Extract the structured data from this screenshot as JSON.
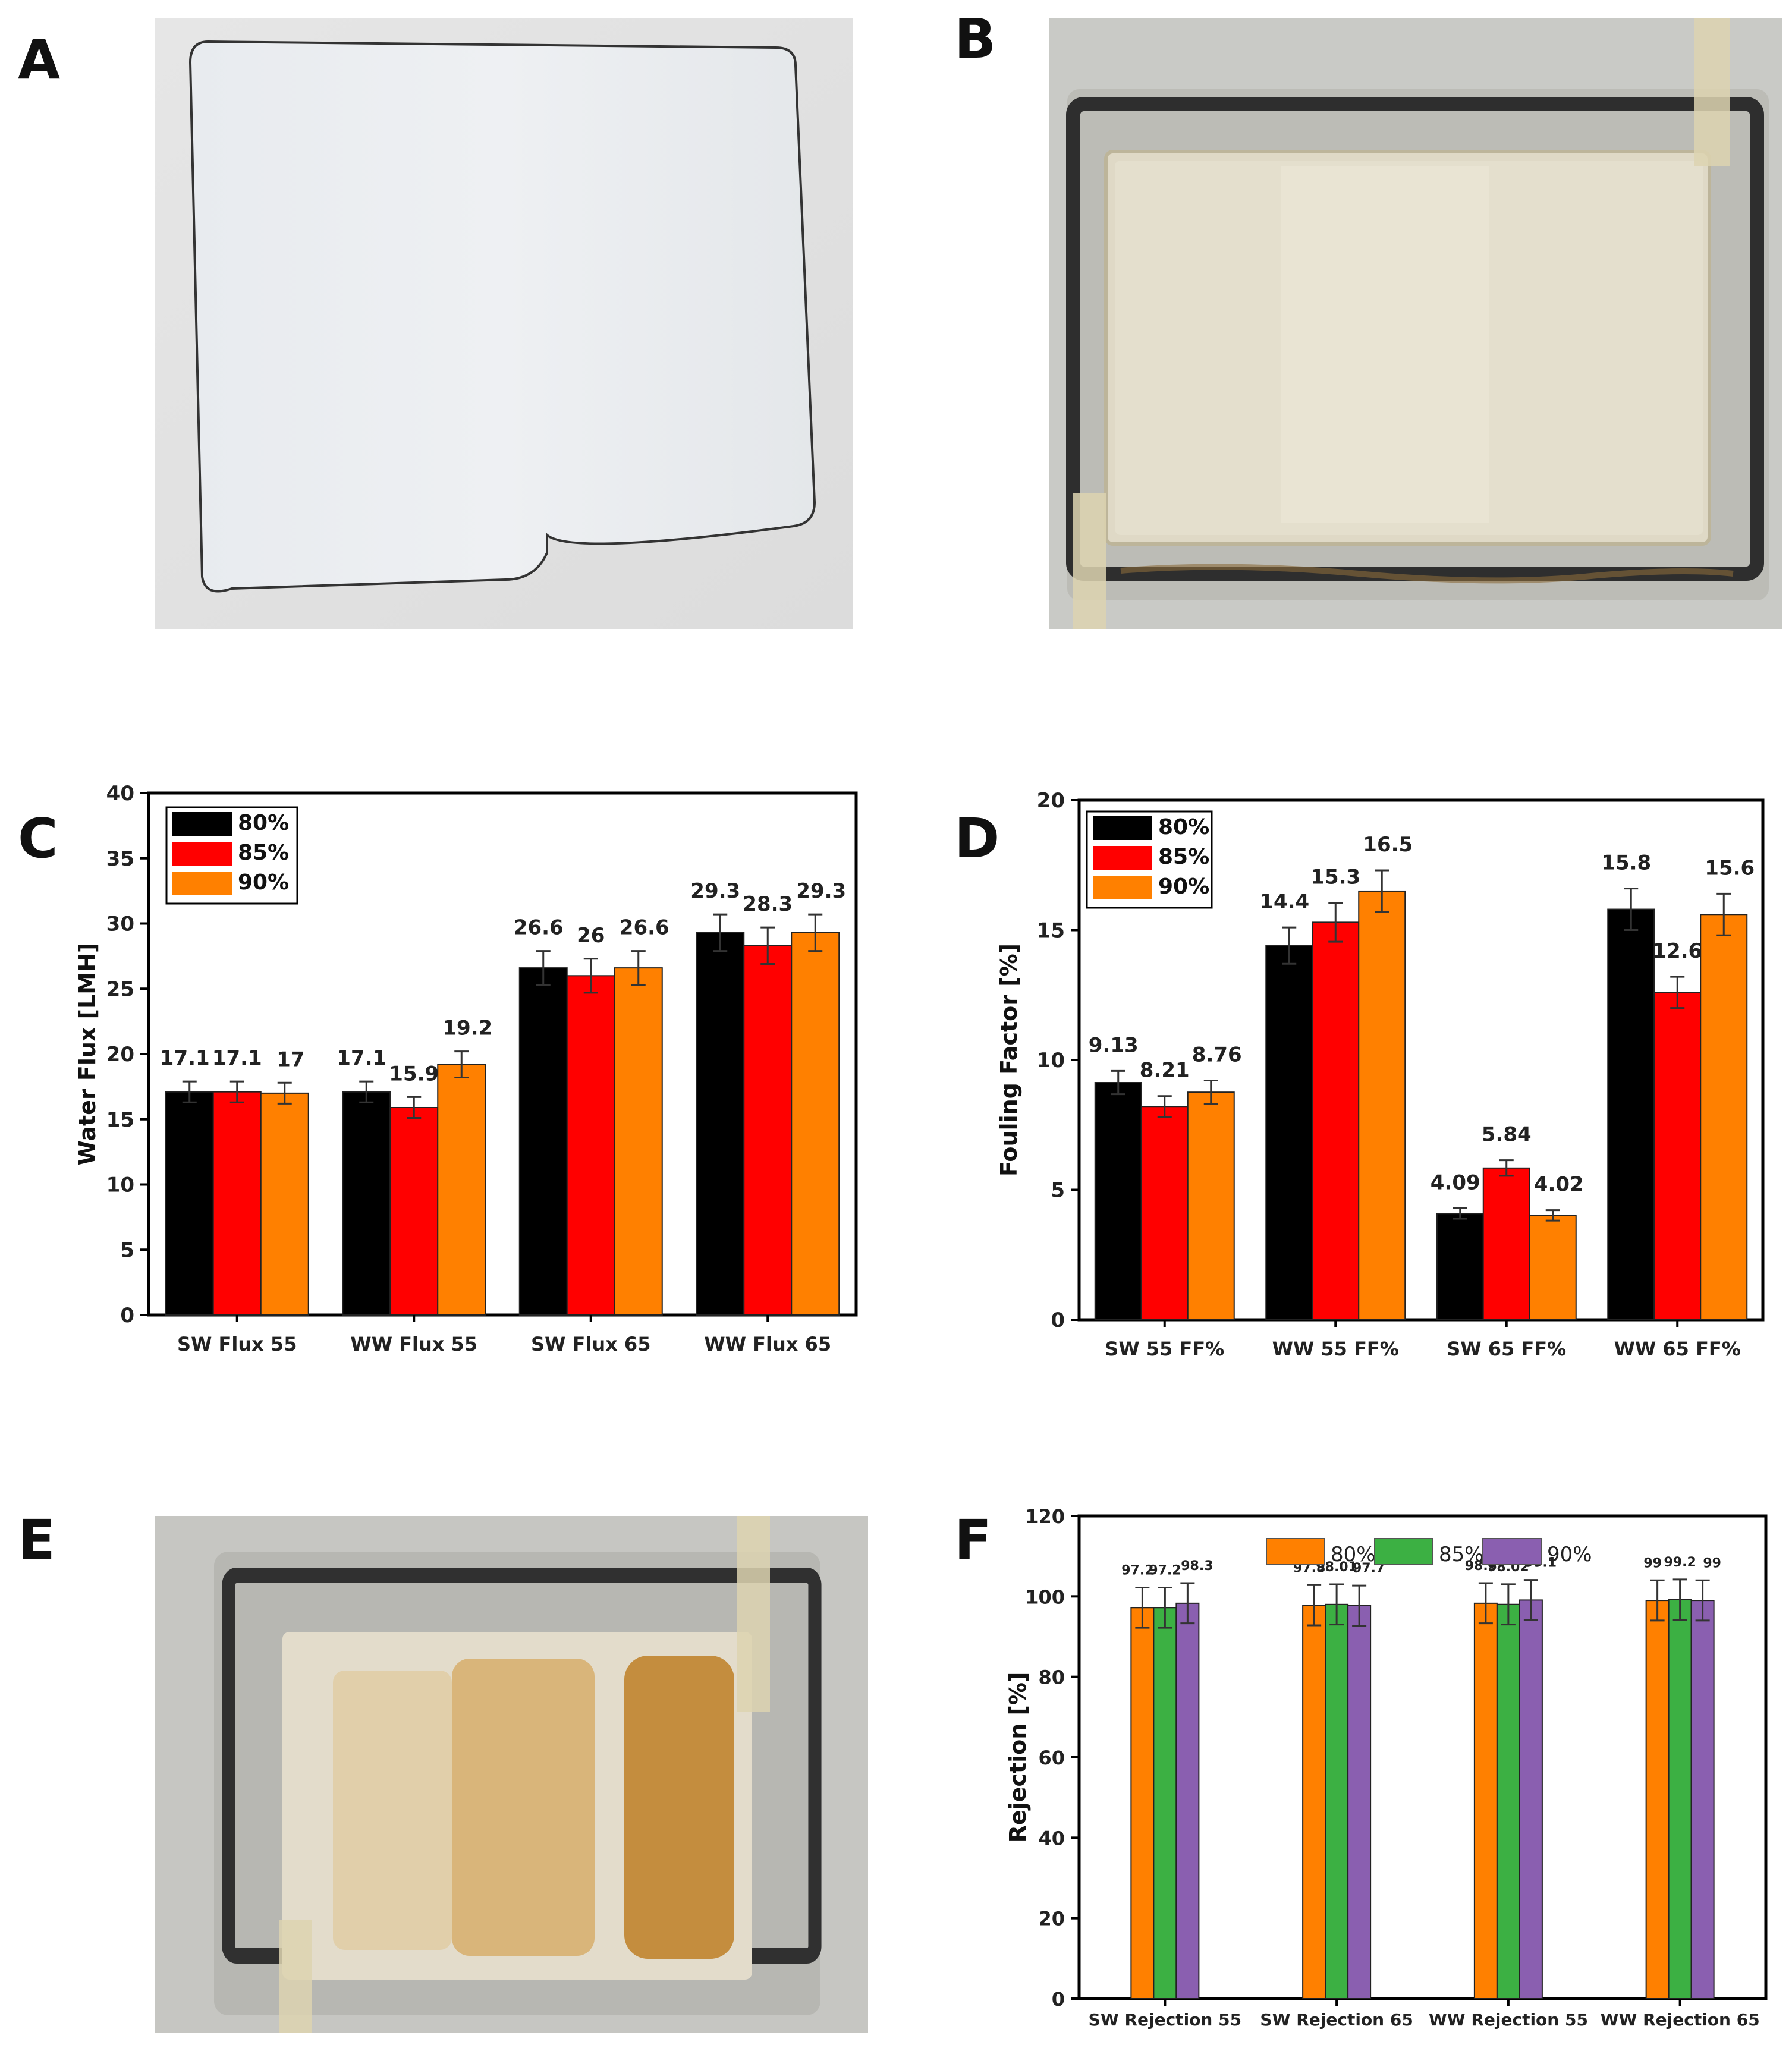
{
  "panels": {
    "a": {
      "letter": "A"
    },
    "b": {
      "letter": "B"
    },
    "c": {
      "letter": "C"
    },
    "d": {
      "letter": "D"
    },
    "e": {
      "letter": "E"
    },
    "f": {
      "letter": "F"
    }
  },
  "chart_data": [
    {
      "id": "C",
      "type": "bar",
      "ylabel": "Water Flux [LMH]",
      "xlabel": "",
      "ylim": [
        0,
        40
      ],
      "yticks": [
        0,
        5,
        10,
        15,
        20,
        25,
        30,
        35,
        40
      ],
      "grid": false,
      "legend_position": "top-left",
      "categories": [
        "SW Flux 55",
        "WW Flux 55",
        "SW Flux 65",
        "WW Flux 65"
      ],
      "series": [
        {
          "name": "80%",
          "color": "#000000",
          "values": [
            17.1,
            17.1,
            26.6,
            29.3
          ],
          "errors": [
            0.8,
            0.8,
            1.3,
            1.4
          ],
          "labels": [
            "17.1",
            "17.1",
            "26.6",
            "29.3"
          ]
        },
        {
          "name": "85%",
          "color": "#ff0000",
          "values": [
            17.1,
            15.9,
            26,
            28.3
          ],
          "errors": [
            0.8,
            0.8,
            1.3,
            1.4
          ],
          "labels": [
            "17.1",
            "15.9",
            "26",
            "28.3"
          ]
        },
        {
          "name": "90%",
          "color": "#ff8000",
          "values": [
            17,
            19.2,
            26.6,
            29.3
          ],
          "errors": [
            0.8,
            1.0,
            1.3,
            1.4
          ],
          "labels": [
            "17",
            "19.2",
            "26.6",
            "29.3"
          ]
        }
      ]
    },
    {
      "id": "D",
      "type": "bar",
      "ylabel": "Fouling Factor [%]",
      "xlabel": "",
      "ylim": [
        0,
        20
      ],
      "yticks": [
        0,
        5,
        10,
        15,
        20
      ],
      "grid": false,
      "legend_position": "top-left",
      "categories": [
        "SW 55 FF%",
        "WW 55 FF%",
        "SW 65 FF%",
        "WW 65 FF%"
      ],
      "series": [
        {
          "name": "80%",
          "color": "#000000",
          "values": [
            9.13,
            14.4,
            4.09,
            15.8
          ],
          "errors": [
            0.45,
            0.7,
            0.2,
            0.8
          ],
          "labels": [
            "9.13",
            "14.4",
            "4.09",
            "15.8"
          ]
        },
        {
          "name": "85%",
          "color": "#ff0000",
          "values": [
            8.21,
            15.3,
            5.84,
            12.6
          ],
          "errors": [
            0.4,
            0.75,
            0.3,
            0.6
          ],
          "labels": [
            "8.21",
            "15.3",
            "5.84",
            "12.6"
          ]
        },
        {
          "name": "90%",
          "color": "#ff8000",
          "values": [
            8.76,
            16.5,
            4.02,
            15.6
          ],
          "errors": [
            0.45,
            0.8,
            0.2,
            0.8
          ],
          "labels": [
            "8.76",
            "16.5",
            "4.02",
            "15.6"
          ]
        }
      ]
    },
    {
      "id": "F",
      "type": "bar",
      "ylabel": "Rejection [%]",
      "xlabel": "",
      "ylim": [
        0,
        120
      ],
      "yticks": [
        0,
        20,
        40,
        60,
        80,
        100,
        120
      ],
      "grid": false,
      "legend_position": "top-center",
      "categories": [
        "SW Rejection 55",
        "SW Rejection 65",
        "WW Rejection 55",
        "WW Rejection 65"
      ],
      "series": [
        {
          "name": "80%",
          "color": "#ff8000",
          "values": [
            97.2,
            97.8,
            98.3,
            99
          ],
          "errors": [
            5,
            5,
            5,
            5
          ],
          "labels": [
            "97.2",
            "97.8",
            "98.3",
            "99"
          ]
        },
        {
          "name": "85%",
          "color": "#3cb043",
          "values": [
            97.2,
            98.01,
            98.02,
            99.2
          ],
          "errors": [
            5,
            5,
            5,
            5
          ],
          "labels": [
            "97.2",
            "98.01",
            "98.02",
            "99.2"
          ]
        },
        {
          "name": "90%",
          "color": "#8a5fb0",
          "values": [
            98.3,
            97.7,
            99.1,
            99
          ],
          "errors": [
            5,
            5,
            5,
            5
          ],
          "labels": [
            "98.3",
            "97.7",
            "99.1",
            "99"
          ]
        }
      ]
    }
  ]
}
